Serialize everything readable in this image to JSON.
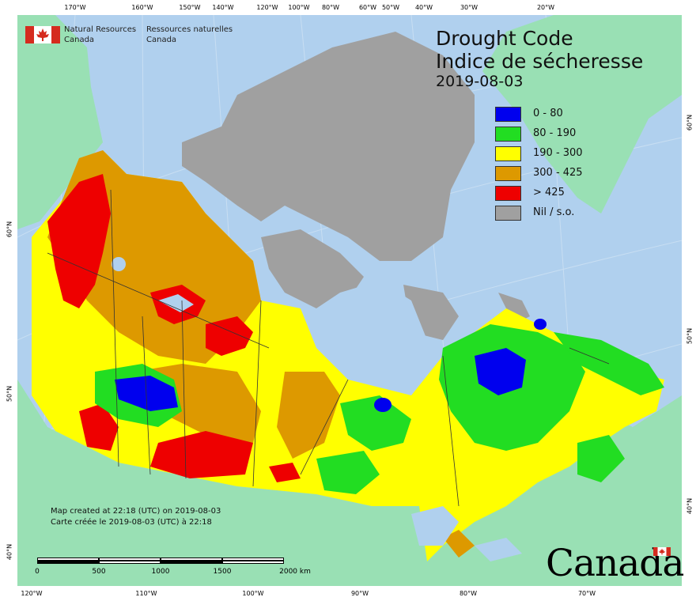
{
  "title_en": "Drought Code",
  "title_fr": "Indice de sécheresse",
  "date": "2019-08-03",
  "agency": {
    "en_line1": "Natural Resources",
    "en_line2": "Canada",
    "fr_line1": "Ressources naturelles",
    "fr_line2": "Canada"
  },
  "legend": [
    {
      "label": "0 - 80",
      "color": "#0000ee"
    },
    {
      "label": "80 - 190",
      "color": "#22dd22"
    },
    {
      "label": "190 - 300",
      "color": "#ffff00"
    },
    {
      "label": "300 - 425",
      "color": "#dd9900"
    },
    {
      "label": "> 425",
      "color": "#ee0000"
    },
    {
      "label": "Nil / s.o.",
      "color": "#a0a0a0"
    }
  ],
  "credit": {
    "line1": "Map created at 22:18 (UTC) on 2019-08-03",
    "line2": "Carte créée le 2019-08-03 (UTC) à 22:18"
  },
  "scale_labels": [
    "0",
    "500",
    "1000",
    "1500",
    "2000 km"
  ],
  "wordmark": "Canada",
  "graticule": {
    "top": [
      "170°W",
      "160°W",
      "150°W",
      "140°W",
      "120°W",
      "100°W",
      "80°W",
      "60°W",
      "50°W",
      "40°W",
      "30°W",
      "20°W"
    ],
    "bottom": [
      "120°W",
      "110°W",
      "100°W",
      "90°W",
      "80°W",
      "70°W"
    ],
    "left": [
      "60°N",
      "50°N",
      "40°N"
    ],
    "right": [
      "60°N",
      "50°N",
      "40°N"
    ]
  },
  "colors": {
    "ocean": "#b0d0ee",
    "land_other": "#99e0b4",
    "nil": "#a0a0a0"
  }
}
